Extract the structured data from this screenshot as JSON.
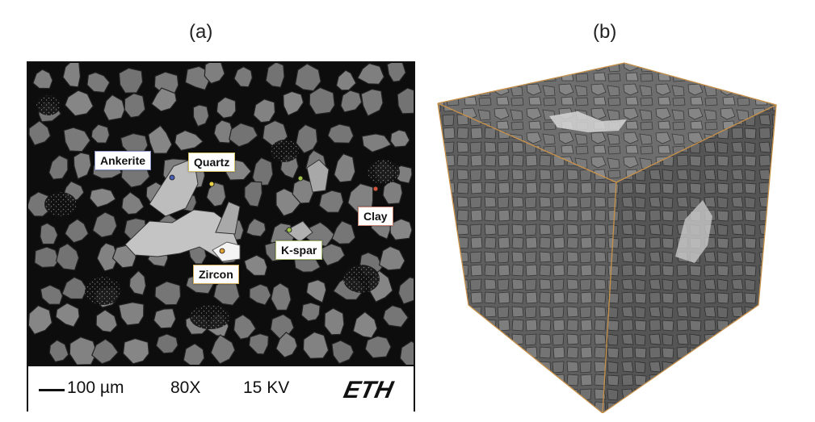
{
  "panels": {
    "a": {
      "label": "(a)"
    },
    "b": {
      "label": "(b)"
    }
  },
  "sem_image": {
    "callouts": {
      "ankerite": "Ankerite",
      "quartz": "Quartz",
      "k_spar": "K-spar",
      "zircon": "Zircon",
      "clay": "Clay"
    },
    "marker_colors": {
      "ankerite": "#4a5fb3",
      "quartz": "#e8d24a",
      "k_spar": "#9fc24a",
      "zircon": "#e0a23a",
      "clay": "#d0553a"
    },
    "scale_bar": {
      "scale_text": "100 µm",
      "magnification": "80X",
      "voltage": "15 KV",
      "logo_text": "ETH"
    }
  },
  "cube_render": {
    "edge_color": "#c9924a"
  }
}
